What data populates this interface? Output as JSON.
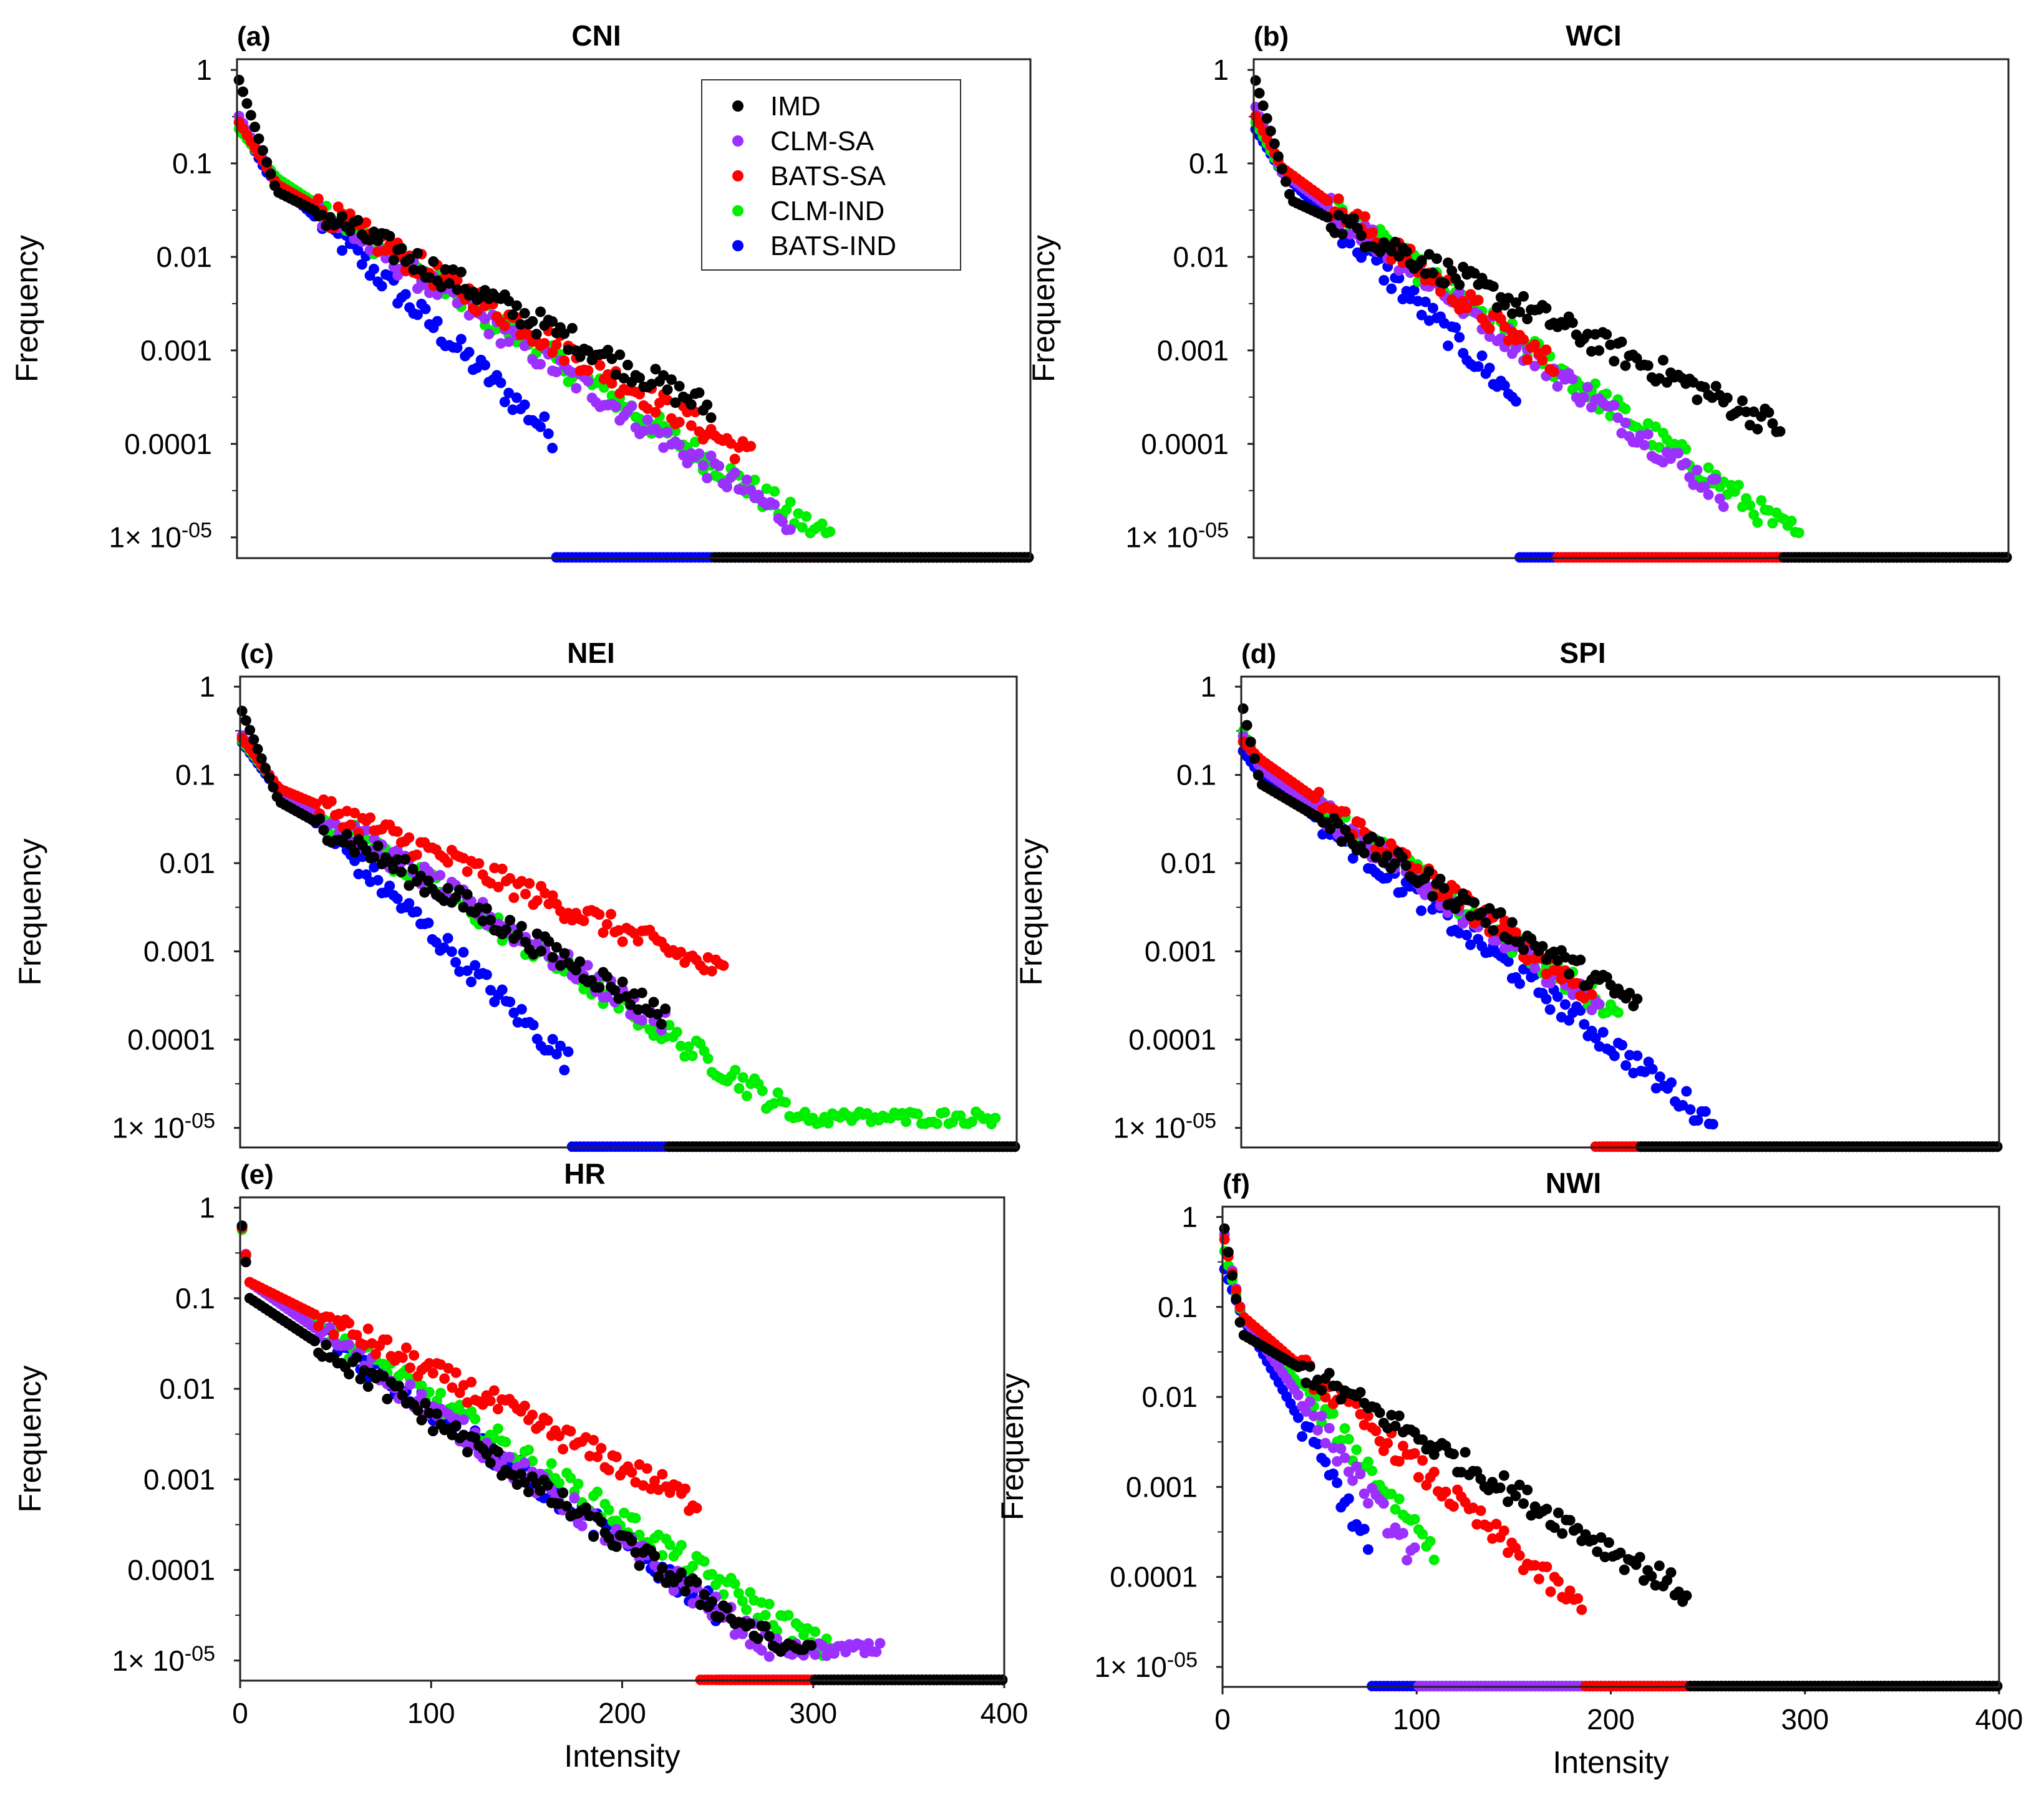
{
  "chart_data": {
    "type": "scatter",
    "log_y": true,
    "xlim": [
      0,
      400
    ],
    "ylim": [
      6e-06,
      1.3
    ],
    "y_ticks": [
      {
        "value": 1,
        "label": "1"
      },
      {
        "value": 0.1,
        "label": "0.1"
      },
      {
        "value": 0.01,
        "label": "0.01"
      },
      {
        "value": 0.001,
        "label": "0.001"
      },
      {
        "value": 0.0001,
        "label": "0.0001"
      },
      {
        "value": 1e-05,
        "label": "1× 10-05"
      }
    ],
    "x_ticks": [
      0,
      100,
      200,
      300,
      400
    ],
    "ylabel": "Frequency",
    "xlabel": "Intensity",
    "legend": {
      "placement": "top-right of panel (a)",
      "entries": [
        {
          "name": "IMD",
          "color": "#000000"
        },
        {
          "name": "CLM-SA",
          "color": "#9b30ff"
        },
        {
          "name": "BATS-SA",
          "color": "#ff0000"
        },
        {
          "name": "CLM-IND",
          "color": "#00ee00"
        },
        {
          "name": "BATS-IND",
          "color": "#0000ff"
        }
      ]
    },
    "panels": [
      {
        "tag": "(a)",
        "title": "CNI",
        "curves": {
          "IMD": {
            "y0": 0.9,
            "x1": 20,
            "y1": 0.05,
            "a": 0.12,
            "d": 0.0245,
            "xmax": 240
          },
          "CLM-SA": {
            "y0": 0.35,
            "x1": 20,
            "y1": 0.06,
            "a": 0.2,
            "d": 0.032,
            "xmax": 280
          },
          "BATS-SA": {
            "y0": 0.3,
            "x1": 20,
            "y1": 0.06,
            "a": 0.2,
            "d": 0.028,
            "xmax": 260
          },
          "CLM-IND": {
            "y0": 0.25,
            "x1": 20,
            "y1": 0.07,
            "a": 0.2,
            "d": 0.032,
            "xmax": 300
          },
          "BATS-IND": {
            "y0": 0.3,
            "x1": 15,
            "y1": 0.08,
            "a": 0.18,
            "d": 0.045,
            "xmax": 160
          }
        }
      },
      {
        "tag": "(b)",
        "title": "WCI",
        "curves": {
          "IMD": {
            "y0": 0.9,
            "x1": 20,
            "y1": 0.04,
            "a": 0.07,
            "d": 0.0215,
            "xmax": 280
          },
          "CLM-SA": {
            "y0": 0.45,
            "x1": 15,
            "y1": 0.08,
            "a": 0.28,
            "d": 0.034,
            "xmax": 250
          },
          "BATS-SA": {
            "y0": 0.35,
            "x1": 15,
            "y1": 0.09,
            "a": 0.3,
            "d": 0.034,
            "xmax": 160
          },
          "CLM-IND": {
            "y0": 0.3,
            "x1": 15,
            "y1": 0.08,
            "a": 0.35,
            "d": 0.033,
            "xmax": 290
          },
          "BATS-IND": {
            "y0": 0.25,
            "x1": 15,
            "y1": 0.08,
            "a": 0.35,
            "d": 0.045,
            "xmax": 140
          }
        }
      },
      {
        "tag": "(c)",
        "title": "NEI",
        "curves": {
          "IMD": {
            "y0": 0.6,
            "x1": 20,
            "y1": 0.05,
            "a": 0.12,
            "d": 0.028,
            "xmax": 220
          },
          "CLM-SA": {
            "y0": 0.3,
            "x1": 20,
            "y1": 0.07,
            "a": 0.18,
            "d": 0.031,
            "xmax": 220
          },
          "BATS-SA": {
            "y0": 0.28,
            "x1": 20,
            "y1": 0.07,
            "a": 0.12,
            "d": 0.021,
            "xmax": 250
          },
          "CLM-IND": {
            "y0": 0.26,
            "x1": 20,
            "y1": 0.07,
            "a": 0.18,
            "d": 0.032,
            "xmax": 390
          },
          "BATS-IND": {
            "y0": 0.25,
            "x1": 15,
            "y1": 0.09,
            "a": 0.22,
            "d": 0.048,
            "xmax": 170
          }
        }
      },
      {
        "tag": "(d)",
        "title": "SPI",
        "curves": {
          "IMD": {
            "y0": 0.7,
            "x1": 10,
            "y1": 0.08,
            "a": 0.13,
            "d": 0.029,
            "xmax": 210
          },
          "CLM-SA": {
            "y0": 0.3,
            "x1": 10,
            "y1": 0.12,
            "a": 0.2,
            "d": 0.035,
            "xmax": 190
          },
          "BATS-SA": {
            "y0": 0.25,
            "x1": 10,
            "y1": 0.15,
            "a": 0.2,
            "d": 0.035,
            "xmax": 185
          },
          "CLM-IND": {
            "y0": 0.35,
            "x1": 10,
            "y1": 0.12,
            "a": 0.2,
            "d": 0.034,
            "xmax": 200
          },
          "BATS-IND": {
            "y0": 0.2,
            "x1": 10,
            "y1": 0.1,
            "a": 0.2,
            "d": 0.038,
            "xmax": 250
          }
        }
      },
      {
        "tag": "(e)",
        "title": "HR",
        "curves": {
          "IMD": {
            "y0": 1.0,
            "x1": 5,
            "y1": 0.1,
            "a": 0.3,
            "d": 0.032,
            "xmax": 300
          },
          "CLM-SA": {
            "y0": 0.9,
            "x1": 5,
            "y1": 0.15,
            "a": 0.3,
            "d": 0.034,
            "xmax": 335
          },
          "BATS-SA": {
            "y0": 0.85,
            "x1": 5,
            "y1": 0.15,
            "a": 0.15,
            "d": 0.024,
            "xmax": 240
          },
          "CLM-IND": {
            "y0": 0.8,
            "x1": 5,
            "y1": 0.15,
            "a": 0.3,
            "d": 0.031,
            "xmax": 310
          },
          "BATS-IND": {
            "y0": 0.8,
            "x1": 5,
            "y1": 0.15,
            "a": 0.32,
            "d": 0.034,
            "xmax": 250
          }
        }
      },
      {
        "tag": "(f)",
        "title": "NWI",
        "curves": {
          "IMD": {
            "y0": 1.0,
            "x1": 10,
            "y1": 0.05,
            "a": 0.1,
            "d": 0.029,
            "xmax": 240
          },
          "CLM-SA": {
            "y0": 0.8,
            "x1": 10,
            "y1": 0.08,
            "a": 0.35,
            "d": 0.07,
            "xmax": 100
          },
          "BATS-SA": {
            "y0": 0.7,
            "x1": 10,
            "y1": 0.08,
            "a": 0.35,
            "d": 0.043,
            "xmax": 185
          },
          "CLM-IND": {
            "y0": 0.5,
            "x1": 10,
            "y1": 0.08,
            "a": 0.35,
            "d": 0.06,
            "xmax": 110
          },
          "BATS-IND": {
            "y0": 0.3,
            "x1": 10,
            "y1": 0.08,
            "a": 0.4,
            "d": 0.09,
            "xmax": 75
          }
        }
      }
    ]
  }
}
